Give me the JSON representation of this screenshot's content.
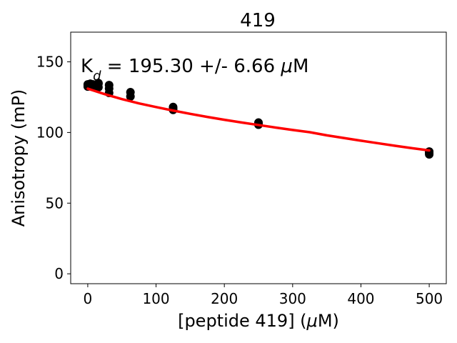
{
  "chart_data": {
    "type": "scatter",
    "title": "419",
    "xlabel_parts": {
      "main": "[peptide 419] (",
      "mu": "μ",
      "end": "M)"
    },
    "ylabel": "Anisotropy (mP)",
    "annotation": {
      "k": "K",
      "sub": "d",
      "rest": " = 195.30 +/- 6.66 ",
      "mu": "μ",
      "end": "M"
    },
    "xlim": [
      -25,
      525
    ],
    "ylim": [
      -7,
      171
    ],
    "xticks": [
      0,
      100,
      200,
      300,
      400,
      500
    ],
    "yticks": [
      0,
      50,
      100,
      150
    ],
    "grid": false,
    "colors": {
      "points": "#000000",
      "fit": "#ff0000"
    },
    "series": [
      {
        "values": [
          {
            "x": 0,
            "y": 134
          },
          {
            "x": 0,
            "y": 132.5
          },
          {
            "x": 0,
            "y": 133.5
          },
          {
            "x": 3.9,
            "y": 133
          },
          {
            "x": 3.9,
            "y": 134.5
          },
          {
            "x": 7.8,
            "y": 132.5
          },
          {
            "x": 7.8,
            "y": 134
          },
          {
            "x": 15.6,
            "y": 135
          },
          {
            "x": 15.6,
            "y": 132
          },
          {
            "x": 15.6,
            "y": 134.5
          },
          {
            "x": 31.25,
            "y": 133.5
          },
          {
            "x": 31.25,
            "y": 128
          },
          {
            "x": 31.25,
            "y": 131
          },
          {
            "x": 62.5,
            "y": 128.5
          },
          {
            "x": 62.5,
            "y": 125.5
          },
          {
            "x": 125,
            "y": 118
          },
          {
            "x": 125,
            "y": 116
          },
          {
            "x": 125,
            "y": 117
          },
          {
            "x": 250,
            "y": 107
          },
          {
            "x": 250,
            "y": 105.5
          },
          {
            "x": 250,
            "y": 106
          },
          {
            "x": 500,
            "y": 86.5
          },
          {
            "x": 500,
            "y": 84.5
          },
          {
            "x": 500,
            "y": 85.5
          }
        ]
      }
    ],
    "fit_line": {
      "x": [
        0,
        25,
        50,
        75,
        100,
        125,
        150,
        175,
        200,
        225,
        250,
        275,
        300,
        325,
        350,
        375,
        400,
        425,
        450,
        475,
        500
      ],
      "y": [
        131,
        127.1,
        123.6,
        120.6,
        118,
        115.5,
        113.2,
        111.0,
        109.0,
        107.1,
        105.3,
        103.5,
        101.8,
        100.2,
        98.0,
        96.1,
        94.2,
        92.4,
        90.6,
        88.9,
        87.3
      ]
    }
  }
}
